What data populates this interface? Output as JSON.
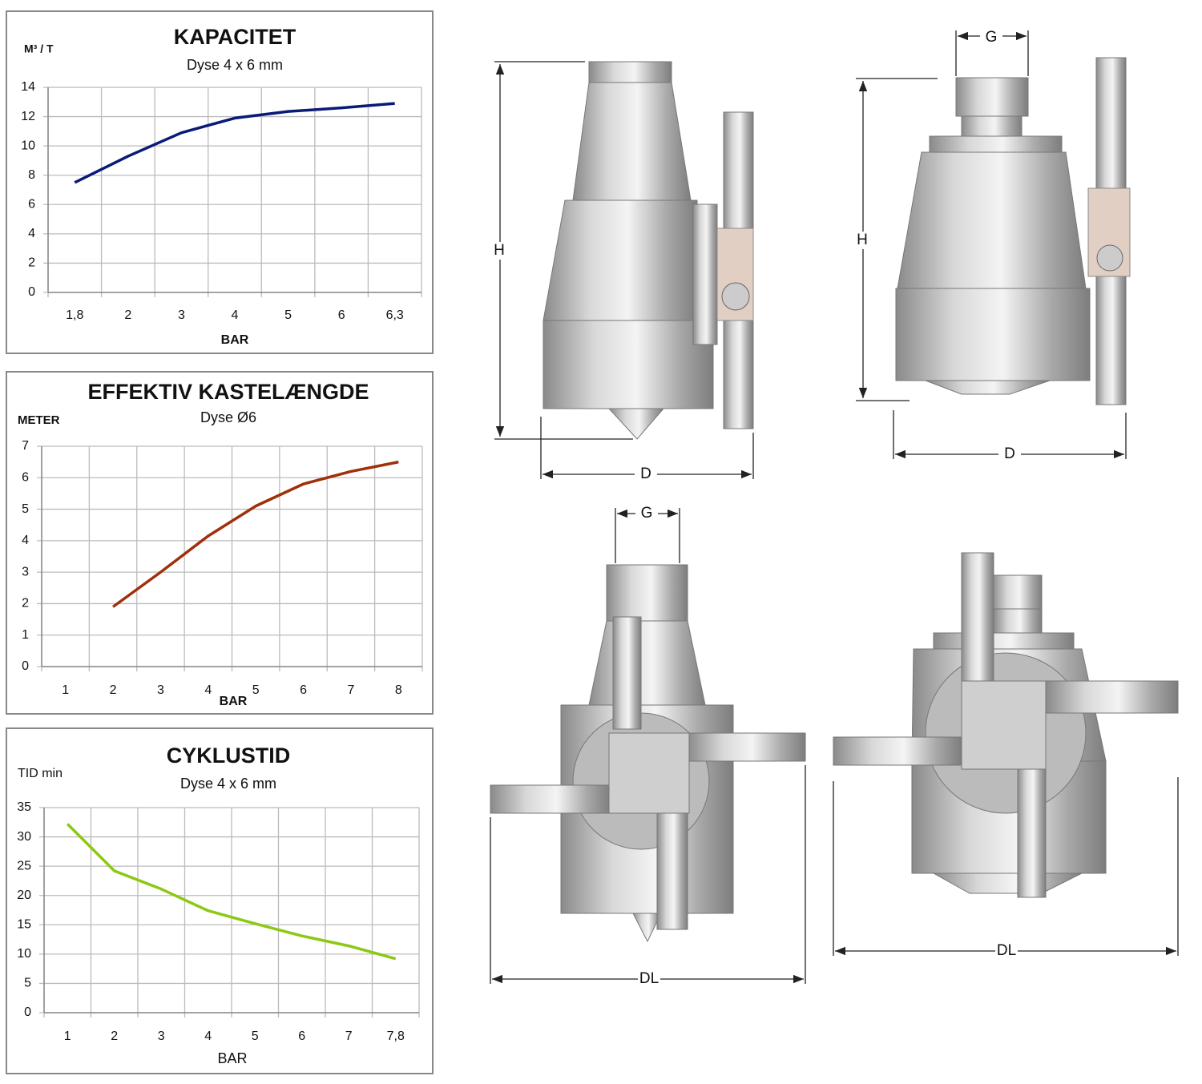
{
  "chart_data": [
    {
      "type": "line",
      "title": "KAPACITET",
      "subtitle": "Dyse 4 x 6 mm",
      "y_label": "M³ / T",
      "x_label": "BAR",
      "categories": [
        "1,8",
        "2",
        "3",
        "4",
        "5",
        "6",
        "6,3"
      ],
      "series": [
        {
          "color": "#0a1a78",
          "values": [
            7.5,
            9.3,
            10.9,
            11.9,
            12.35,
            12.6,
            12.9
          ]
        }
      ],
      "ylim": [
        0,
        14
      ],
      "yticks": [
        0,
        2,
        4,
        6,
        8,
        10,
        12,
        14
      ],
      "grid": true
    },
    {
      "type": "line",
      "title": "EFFEKTIV KASTELÆNGDE",
      "subtitle": "Dyse Ø6",
      "y_label": "METER",
      "x_label": "BAR",
      "categories": [
        "1",
        "2",
        "3",
        "4",
        "5",
        "6",
        "7",
        "8"
      ],
      "series": [
        {
          "color": "#a0300c",
          "values": [
            null,
            1.9,
            3.0,
            4.15,
            5.1,
            5.8,
            6.2,
            6.5
          ]
        }
      ],
      "ylim": [
        0,
        7
      ],
      "yticks": [
        0,
        1,
        2,
        3,
        4,
        5,
        6,
        7
      ],
      "grid": true
    },
    {
      "type": "line",
      "title": "CYKLUSTID",
      "subtitle": "Dyse 4 x 6 mm",
      "y_label": "TID min",
      "x_label": "BAR",
      "categories": [
        "1",
        "2",
        "3",
        "4",
        "5",
        "6",
        "7",
        "7,8"
      ],
      "series": [
        {
          "color": "#8cc814",
          "values": [
            32.2,
            24.2,
            21.1,
            17.4,
            15.2,
            13.1,
            11.4,
            9.2
          ]
        }
      ],
      "ylim": [
        0,
        35
      ],
      "yticks": [
        0,
        5,
        10,
        15,
        20,
        25,
        30,
        35
      ],
      "grid": true
    }
  ],
  "drawings": [
    {
      "labels": [
        "H",
        "D"
      ]
    },
    {
      "labels": [
        "G",
        "H",
        "D"
      ]
    },
    {
      "labels": [
        "G",
        "DL"
      ]
    },
    {
      "labels": [
        "DL"
      ]
    }
  ]
}
